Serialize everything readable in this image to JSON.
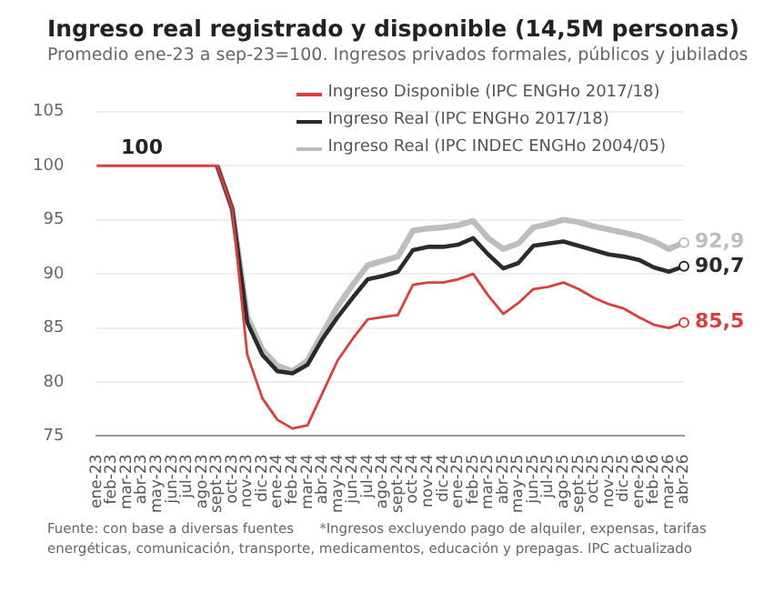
{
  "chart_data": {
    "type": "line",
    "title": "Ingreso real registrado y disponible (14,5M personas)",
    "subtitle": "Promedio ene-23 a sep-23=100. Ingresos privados formales, públicos y jubilados",
    "categories": [
      "ene-23",
      "feb-23",
      "mar-23",
      "abr-23",
      "may-23",
      "jun-23",
      "jul-23",
      "ago-23",
      "sept-23",
      "oct-23",
      "nov-23",
      "dic-23",
      "ene-24",
      "feb-24",
      "mar-24",
      "abr-24",
      "may-24",
      "jun-24",
      "jul-24",
      "ago-24",
      "sept-24",
      "oct-24",
      "nov-24",
      "dic-24",
      "ene-25",
      "feb-25",
      "mar-25",
      "abr-25",
      "may-25",
      "jun-25",
      "jul-25",
      "ago-25",
      "sept-25",
      "oct-25",
      "nov-25",
      "dic-25",
      "ene-26",
      "feb-26",
      "mar-26",
      "abr-26"
    ],
    "series": [
      {
        "name": "Ingreso Disponible (IPC ENGHo 2017/18)",
        "color": "#e03c3c",
        "values": [
          100,
          100,
          100,
          100,
          100,
          100,
          100,
          100,
          100,
          96,
          82.5,
          78.5,
          76.5,
          75.7,
          76,
          79,
          82,
          84,
          85.8,
          86,
          86.2,
          89,
          89.2,
          89.2,
          89.5,
          90,
          88,
          86.3,
          87.3,
          88.6,
          88.8,
          89.2,
          88.6,
          87.8,
          87.2,
          86.8,
          86,
          85.3,
          85,
          85.5
        ],
        "value_labels": [
          null,
          null,
          null,
          null,
          null,
          null,
          null,
          null,
          null,
          null,
          null,
          null,
          null,
          null,
          null,
          null,
          null,
          null,
          null,
          null,
          null,
          null,
          null,
          null,
          null,
          null,
          null,
          null,
          null,
          null,
          null,
          null,
          null,
          null,
          null,
          null,
          null,
          null,
          null,
          "85,5"
        ]
      },
      {
        "name": "Ingreso Real (IPC ENGHo 2017/18)",
        "color": "#2b2b2b",
        "values": [
          null,
          null,
          null,
          null,
          null,
          null,
          null,
          null,
          100,
          96,
          85.5,
          82.5,
          81,
          80.8,
          81.6,
          84,
          86,
          87.8,
          89.5,
          89.8,
          90.2,
          92.2,
          92.5,
          92.5,
          92.7,
          93.3,
          91.8,
          90.5,
          91,
          92.6,
          92.8,
          93,
          92.6,
          92.2,
          91.8,
          91.6,
          91.3,
          90.6,
          90.2,
          90.7
        ],
        "value_labels": [
          null,
          null,
          null,
          null,
          null,
          null,
          null,
          null,
          null,
          null,
          null,
          null,
          null,
          null,
          null,
          null,
          null,
          null,
          null,
          null,
          null,
          null,
          null,
          null,
          null,
          null,
          null,
          null,
          null,
          null,
          null,
          null,
          null,
          null,
          null,
          null,
          null,
          null,
          null,
          "90,7"
        ]
      },
      {
        "name": "Ingreso Real (IPC INDEC ENGHo 2004/05)",
        "color": "#bdbdbd",
        "values": [
          null,
          null,
          null,
          null,
          null,
          null,
          null,
          null,
          100,
          96,
          86,
          83,
          81.5,
          81,
          82,
          84.5,
          87,
          89,
          90.8,
          91.2,
          91.6,
          94,
          94.2,
          94.3,
          94.5,
          94.9,
          93.3,
          92.3,
          92.8,
          94.3,
          94.6,
          95,
          94.8,
          94.4,
          94.1,
          93.8,
          93.5,
          93,
          92.3,
          92.9
        ],
        "value_labels": [
          null,
          null,
          null,
          null,
          null,
          null,
          null,
          null,
          null,
          null,
          null,
          null,
          null,
          null,
          null,
          null,
          null,
          null,
          null,
          null,
          null,
          null,
          null,
          null,
          null,
          null,
          null,
          null,
          null,
          null,
          null,
          null,
          null,
          null,
          null,
          null,
          null,
          null,
          null,
          "92,9"
        ]
      }
    ],
    "ylim": [
      75,
      105
    ],
    "yticks": [
      75,
      80,
      85,
      90,
      95,
      100,
      105
    ],
    "grid": "y",
    "legend": "top right",
    "marker": "none",
    "annotations": [
      {
        "text": "100",
        "x": "abr-23",
        "y": 100
      },
      "Fuente: con base a diversas fuentes",
      "*Ingresos excluyendo pago de alquiler, expensas, tarifas energéticas, comunicación, transporte, medicamentos, educación y prepagas. IPC actualizado"
    ]
  }
}
